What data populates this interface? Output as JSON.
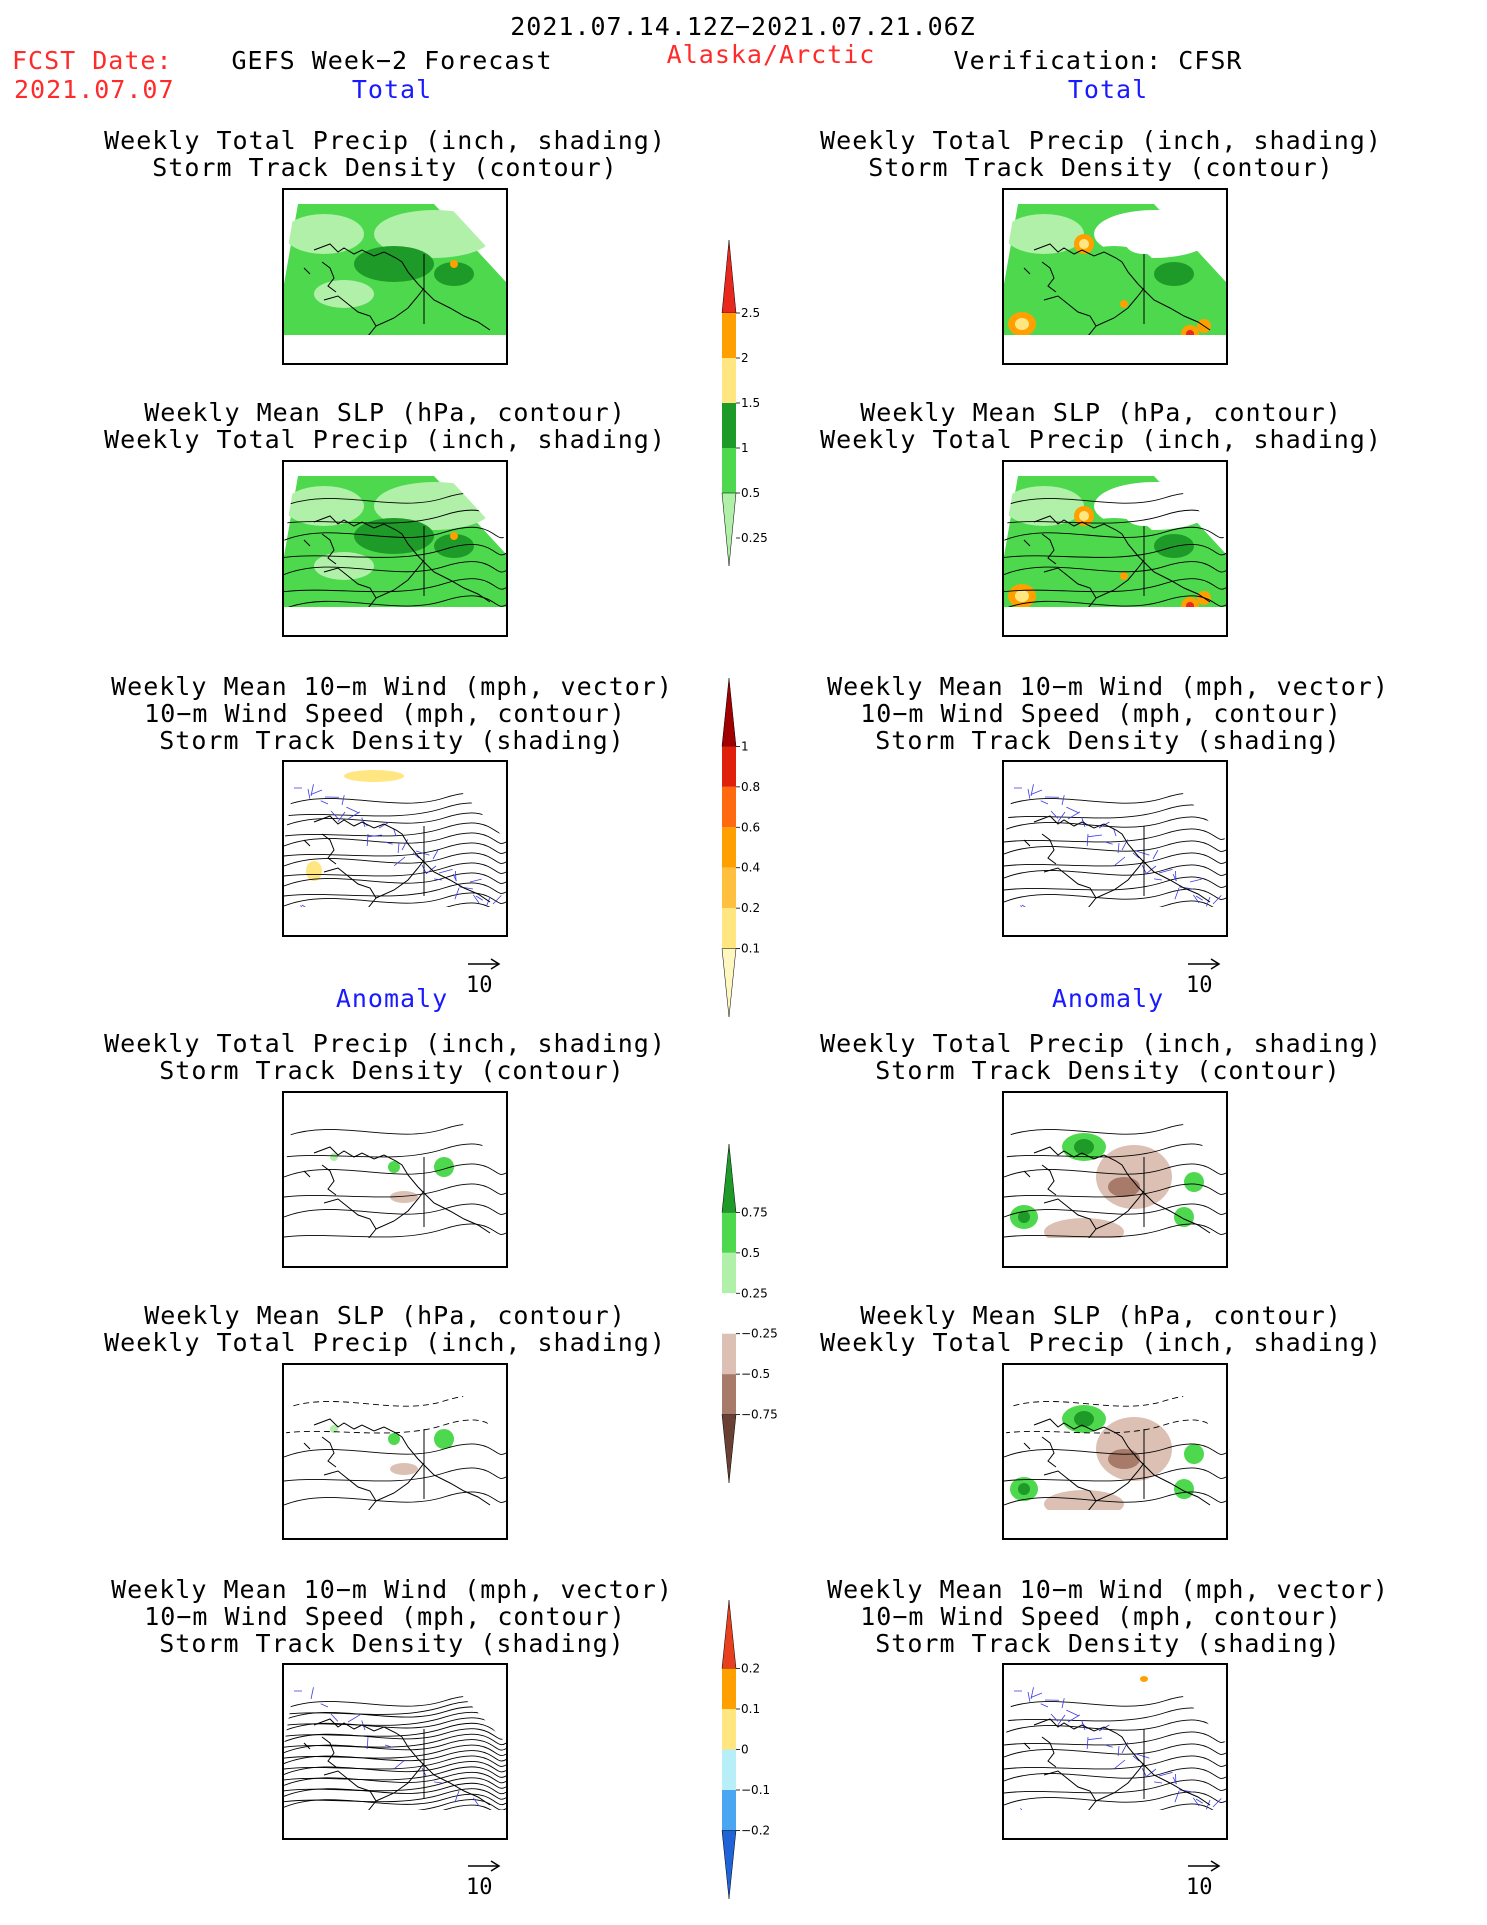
{
  "header": {
    "period": "2021.07.14.12Z−2021.07.21.06Z",
    "fcst_label": "FCST Date:",
    "fcst_date": "2021.07.07",
    "model": "GEFS Week−2 Forecast",
    "region": "Alaska/Arctic",
    "verification": "Verification: CFSR"
  },
  "sections": {
    "total": "Total",
    "anomaly": "Anomaly"
  },
  "titles": {
    "precip_track": [
      "Weekly Total Precip (inch, shading)",
      "Storm Track Density (contour)"
    ],
    "slp_precip": [
      "Weekly Mean SLP (hPa, contour)",
      "Weekly Total Precip (inch, shading)"
    ],
    "wind_track": [
      "Weekly Mean 10−m Wind (mph, vector)",
      "10−m Wind Speed (mph, contour)",
      "Storm Track Density (shading)"
    ]
  },
  "vector_ref": "10",
  "colorbars": {
    "precip_total": {
      "labels": [
        "2.5",
        "2",
        "1.5",
        "1",
        "0.5",
        "0.25"
      ],
      "colors": [
        "#e8281e",
        "#ffa000",
        "#ffe680",
        "#1e9a28",
        "#4ed84e",
        "#b0f0a8"
      ]
    },
    "track_total": {
      "labels": [
        "1",
        "0.8",
        "0.6",
        "0.4",
        "0.2",
        "0.1"
      ],
      "colors": [
        "#a00000",
        "#e0200a",
        "#ff6a10",
        "#ffa000",
        "#ffc040",
        "#ffe680",
        "#fff7c0"
      ]
    },
    "precip_anom": {
      "labels": [
        "0.75",
        "0.5",
        "0.25",
        "−0.25",
        "−0.5",
        "−0.75"
      ],
      "colors": [
        "#1e9a28",
        "#4ed84e",
        "#b0f0a8",
        "#ffffff",
        "#dcc0b4",
        "#a87a6a",
        "#6a4034"
      ]
    },
    "track_anom": {
      "labels": [
        "0.2",
        "0.1",
        "0",
        "−0.1",
        "−0.2"
      ],
      "colors": [
        "#e8401e",
        "#ffa000",
        "#ffe680",
        "#b8eef8",
        "#4aa6f0",
        "#1e64d8"
      ]
    }
  }
}
